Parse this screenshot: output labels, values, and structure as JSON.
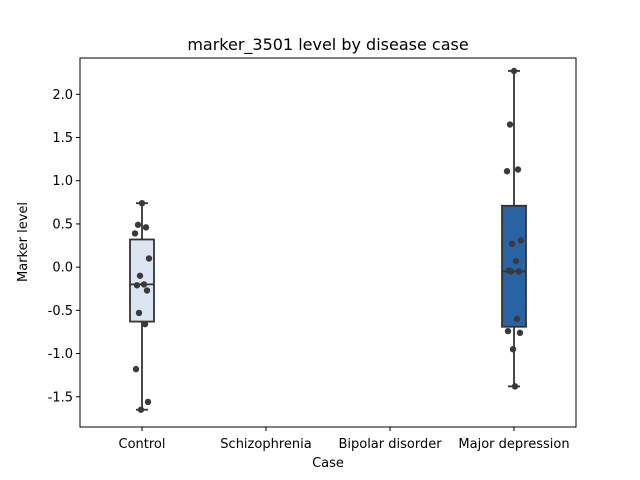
{
  "chart_data": {
    "type": "box",
    "title": "marker_3501 level by disease case",
    "xlabel": "Case",
    "ylabel": "Marker level",
    "ylim": [
      -1.85,
      2.42
    ],
    "yticks": [
      "-1.5",
      "-1.0",
      "-0.5",
      "0.0",
      "0.5",
      "1.0",
      "1.5",
      "2.0"
    ],
    "categories": [
      "Control",
      "Schizophrenia",
      "Bipolar disorder",
      "Major depression"
    ],
    "boxes": [
      {
        "category": "Control",
        "color": "#dce6f2",
        "whisker_low": -1.65,
        "q1": -0.63,
        "median": -0.2,
        "q3": 0.32,
        "whisker_high": 0.74,
        "points": [
          0.74,
          0.49,
          0.46,
          0.39,
          0.1,
          -0.1,
          -0.2,
          -0.21,
          -0.27,
          -0.53,
          -0.66,
          -1.18,
          -1.56,
          -1.65
        ]
      },
      {
        "category": "Schizophrenia",
        "points": []
      },
      {
        "category": "Bipolar disorder",
        "points": []
      },
      {
        "category": "Major depression",
        "color": "#2a63a4",
        "whisker_low": -1.38,
        "q1": -0.69,
        "median": -0.05,
        "q3": 0.71,
        "whisker_high": 2.27,
        "points": [
          2.27,
          1.65,
          1.13,
          1.11,
          0.31,
          0.27,
          0.07,
          -0.04,
          -0.05,
          -0.05,
          -0.6,
          -0.74,
          -0.76,
          -0.95,
          -1.38
        ]
      }
    ]
  }
}
